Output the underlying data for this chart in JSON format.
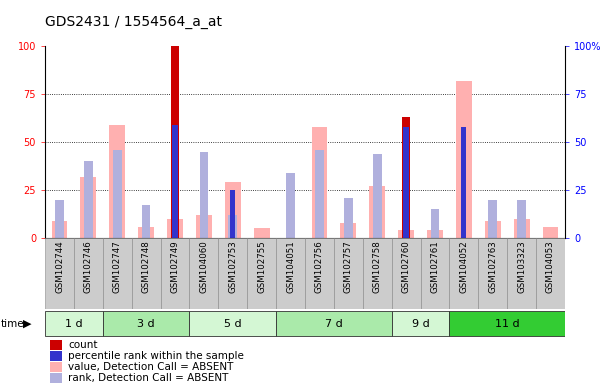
{
  "title": "GDS2431 / 1554564_a_at",
  "samples": [
    "GSM102744",
    "GSM102746",
    "GSM102747",
    "GSM102748",
    "GSM102749",
    "GSM104060",
    "GSM102753",
    "GSM102755",
    "GSM104051",
    "GSM102756",
    "GSM102757",
    "GSM102758",
    "GSM102760",
    "GSM102761",
    "GSM104052",
    "GSM102763",
    "GSM103323",
    "GSM104053"
  ],
  "count": [
    0,
    0,
    0,
    0,
    100,
    0,
    0,
    0,
    0,
    0,
    0,
    0,
    63,
    0,
    0,
    0,
    0,
    0
  ],
  "percentile": [
    0,
    0,
    0,
    0,
    59,
    0,
    25,
    0,
    0,
    0,
    0,
    0,
    58,
    0,
    58,
    0,
    0,
    0
  ],
  "value_absent": [
    9,
    32,
    59,
    6,
    10,
    12,
    29,
    5,
    0,
    58,
    8,
    27,
    4,
    4,
    82,
    9,
    10,
    6
  ],
  "rank_absent": [
    20,
    40,
    46,
    17,
    0,
    45,
    12,
    0,
    34,
    46,
    21,
    44,
    0,
    15,
    0,
    20,
    20,
    0
  ],
  "time_groups": [
    {
      "label": "1 d",
      "start": 0,
      "end": 2,
      "color": "#d4f7d4"
    },
    {
      "label": "3 d",
      "start": 2,
      "end": 5,
      "color": "#aaeaaa"
    },
    {
      "label": "5 d",
      "start": 5,
      "end": 8,
      "color": "#d4f7d4"
    },
    {
      "label": "7 d",
      "start": 8,
      "end": 12,
      "color": "#aaeaaa"
    },
    {
      "label": "9 d",
      "start": 12,
      "end": 14,
      "color": "#d4f7d4"
    },
    {
      "label": "11 d",
      "start": 14,
      "end": 18,
      "color": "#33cc33"
    }
  ],
  "color_count": "#cc0000",
  "color_percentile": "#3333cc",
  "color_value_absent": "#ffb0b0",
  "color_rank_absent": "#b0b0dd",
  "ylim": [
    0,
    100
  ],
  "yticks": [
    0,
    25,
    50,
    75,
    100
  ],
  "bg_color": "#ffffff"
}
